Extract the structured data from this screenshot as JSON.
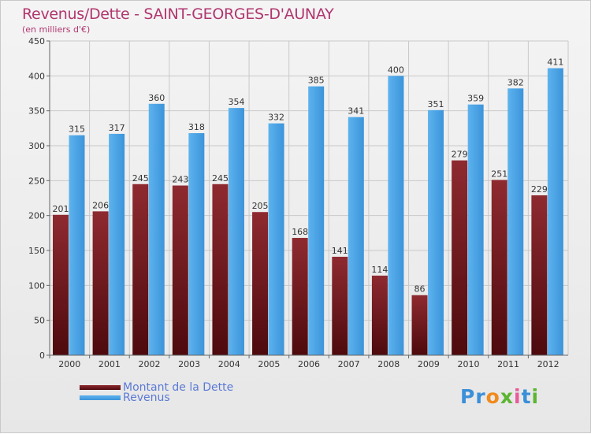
{
  "title": "Revenus/Dette - SAINT-GEORGES-D'AUNAY",
  "subtitle": "(en milliers d'€)",
  "logo": {
    "text": "Proxiti",
    "letter_colors": [
      "#3a8fd8",
      "#3a8fd8",
      "#f08a1c",
      "#5cb531",
      "#e85a9b",
      "#3a8fd8",
      "#5cb531"
    ]
  },
  "colors": {
    "dette": "#7a1f24",
    "revenus": "#4aa3e6",
    "grid": "#c9c9c9",
    "axis_text": "#333333"
  },
  "chart_data": {
    "type": "bar",
    "title": "Revenus/Dette - SAINT-GEORGES-D'AUNAY",
    "subtitle": "(en milliers d'€)",
    "categories": [
      "2000",
      "2001",
      "2002",
      "2003",
      "2004",
      "2005",
      "2006",
      "2007",
      "2008",
      "2009",
      "2010",
      "2011",
      "2012"
    ],
    "series": [
      {
        "name": "Montant de la Dette",
        "color": "#7a1f24",
        "values": [
          201,
          206,
          245,
          243,
          245,
          205,
          168,
          141,
          114,
          86,
          279,
          251,
          229
        ]
      },
      {
        "name": "Revenus",
        "color": "#4aa3e6",
        "values": [
          315,
          317,
          360,
          318,
          354,
          332,
          385,
          341,
          400,
          351,
          359,
          382,
          411
        ]
      }
    ],
    "ylim": [
      0,
      450
    ],
    "yticks": [
      0,
      50,
      100,
      150,
      200,
      250,
      300,
      350,
      400,
      450
    ],
    "grid": true,
    "legend_position": "bottom-left",
    "xlabel": "",
    "ylabel": ""
  }
}
